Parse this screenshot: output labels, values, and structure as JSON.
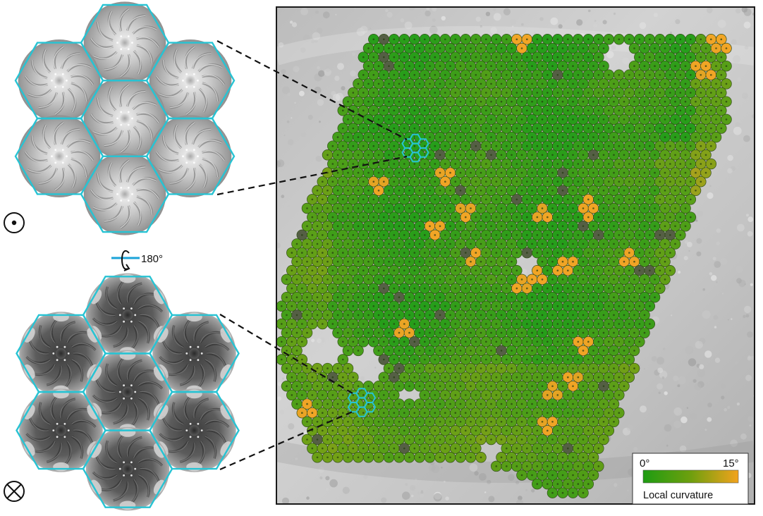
{
  "rotation": {
    "angle_label": "180°"
  },
  "symbols": {
    "top": "out-of-plane-dot-icon",
    "bottom": "into-plane-cross-icon"
  },
  "colorbar": {
    "min_label": "0°",
    "max_label": "15°",
    "title": "Local curvature",
    "color_low": "#1e9c12",
    "color_mid": "#6e9f0e",
    "color_high": "#f3a31d"
  },
  "colors": {
    "hex_outline": "#27c3d3",
    "rotation_axis": "#1aa3d8",
    "connector": "#111111",
    "panel_border": "#1a1a1a"
  }
}
